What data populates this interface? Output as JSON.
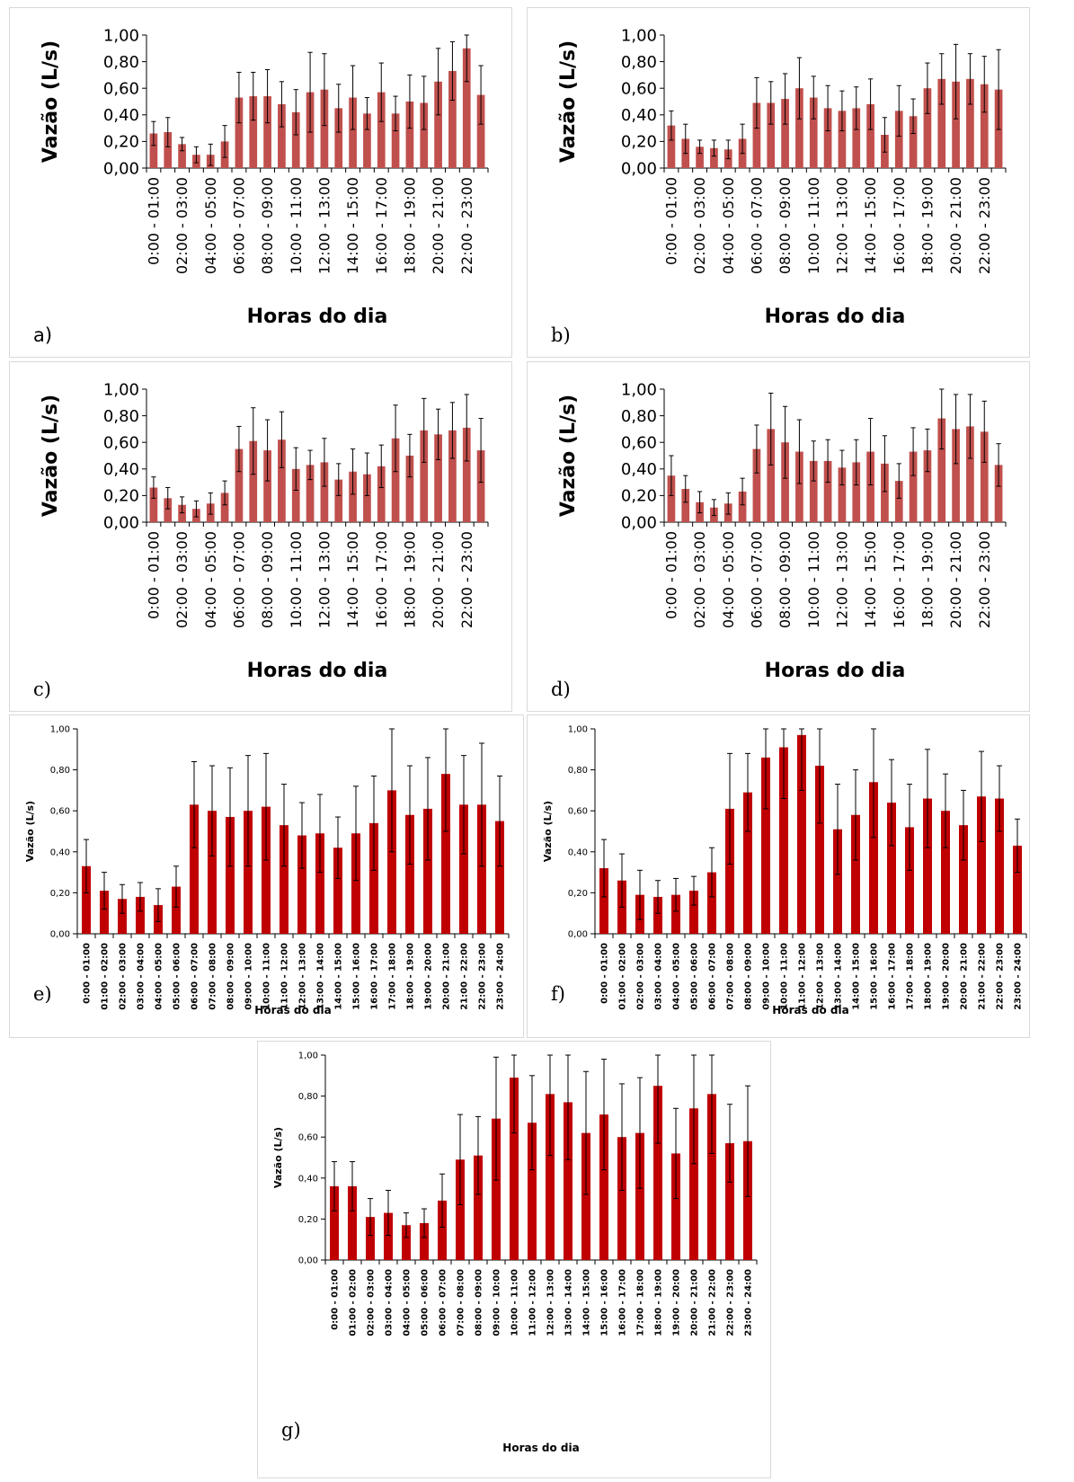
{
  "colors": {
    "panel_a_to_d_bar": "#c0504d",
    "panel_e_to_g_bar": "#c00000",
    "error_bar": "#000000"
  },
  "chart_data": [
    {
      "id": "a",
      "panel_label": "a)",
      "type": "bar",
      "xlabel": "Horas do dia",
      "ylabel": "Vazão (L/s)",
      "ylim": [
        0,
        1
      ],
      "yticks": [
        "0,00",
        "0,20",
        "0,40",
        "0,60",
        "0,80",
        "1,00"
      ],
      "categories": [
        "0:00 - 01:00",
        "",
        "02:00 - 03:00",
        "",
        "04:00 - 05:00",
        "",
        "06:00 - 07:00",
        "",
        "08:00 - 09:00",
        "",
        "10:00 - 11:00",
        "",
        "12:00 - 13:00",
        "",
        "14:00 - 15:00",
        "",
        "16:00 - 17:00",
        "",
        "18:00 - 19:00",
        "",
        "20:00 - 21:00",
        "",
        "22:00 - 23:00",
        ""
      ],
      "values": [
        0.26,
        0.27,
        0.18,
        0.1,
        0.1,
        0.2,
        0.53,
        0.54,
        0.54,
        0.48,
        0.42,
        0.57,
        0.59,
        0.45,
        0.53,
        0.41,
        0.57,
        0.41,
        0.5,
        0.49,
        0.65,
        0.73,
        0.9,
        0.55
      ],
      "errors": [
        0.09,
        0.11,
        0.05,
        0.06,
        0.08,
        0.12,
        0.19,
        0.18,
        0.2,
        0.17,
        0.17,
        0.3,
        0.27,
        0.18,
        0.24,
        0.12,
        0.22,
        0.13,
        0.2,
        0.2,
        0.25,
        0.22,
        0.25,
        0.22
      ]
    },
    {
      "id": "b",
      "panel_label": "b)",
      "type": "bar",
      "xlabel": "Horas do dia",
      "ylabel": "Vazão (L/s)",
      "ylim": [
        0,
        1
      ],
      "yticks": [
        "0,00",
        "0,20",
        "0,40",
        "0,60",
        "0,80",
        "1,00"
      ],
      "categories": [
        "0:00 - 01:00",
        "",
        "02:00 - 03:00",
        "",
        "04:00 - 05:00",
        "",
        "06:00 - 07:00",
        "",
        "08:00 - 09:00",
        "",
        "10:00 - 11:00",
        "",
        "12:00 - 13:00",
        "",
        "14:00 - 15:00",
        "",
        "16:00 - 17:00",
        "",
        "18:00 - 19:00",
        "",
        "20:00 - 21:00",
        "",
        "22:00 - 23:00",
        ""
      ],
      "values": [
        0.32,
        0.22,
        0.16,
        0.15,
        0.14,
        0.22,
        0.49,
        0.49,
        0.52,
        0.6,
        0.53,
        0.45,
        0.43,
        0.45,
        0.48,
        0.25,
        0.43,
        0.39,
        0.6,
        0.67,
        0.65,
        0.67,
        0.63,
        0.59
      ],
      "errors": [
        0.11,
        0.11,
        0.05,
        0.06,
        0.07,
        0.11,
        0.19,
        0.16,
        0.19,
        0.23,
        0.16,
        0.17,
        0.15,
        0.16,
        0.19,
        0.13,
        0.19,
        0.13,
        0.19,
        0.19,
        0.28,
        0.19,
        0.21,
        0.3
      ]
    },
    {
      "id": "c",
      "panel_label": "c)",
      "type": "bar",
      "xlabel": "Horas do dia",
      "ylabel": "Vazão (L/s)",
      "ylim": [
        0,
        1
      ],
      "yticks": [
        "0,00",
        "0,20",
        "0,40",
        "0,60",
        "0,80",
        "1,00"
      ],
      "categories": [
        "0:00 - 01:00",
        "",
        "02:00 - 03:00",
        "",
        "04:00 - 05:00",
        "",
        "06:00 - 07:00",
        "",
        "08:00 - 09:00",
        "",
        "10:00 - 11:00",
        "",
        "12:00 - 13:00",
        "",
        "14:00 - 15:00",
        "",
        "16:00 - 17:00",
        "",
        "18:00 - 19:00",
        "",
        "20:00 - 21:00",
        "",
        "22:00 - 23:00",
        ""
      ],
      "values": [
        0.26,
        0.18,
        0.13,
        0.1,
        0.14,
        0.22,
        0.55,
        0.61,
        0.54,
        0.62,
        0.4,
        0.43,
        0.45,
        0.32,
        0.38,
        0.36,
        0.42,
        0.63,
        0.5,
        0.69,
        0.66,
        0.69,
        0.71,
        0.54
      ],
      "errors": [
        0.08,
        0.08,
        0.06,
        0.06,
        0.08,
        0.09,
        0.17,
        0.25,
        0.23,
        0.21,
        0.16,
        0.11,
        0.18,
        0.12,
        0.17,
        0.16,
        0.16,
        0.25,
        0.16,
        0.24,
        0.19,
        0.21,
        0.25,
        0.24
      ]
    },
    {
      "id": "d",
      "panel_label": "d)",
      "type": "bar",
      "xlabel": "Horas do dia",
      "ylabel": "Vazão (L/s)",
      "ylim": [
        0,
        1
      ],
      "yticks": [
        "0,00",
        "0,20",
        "0,40",
        "0,60",
        "0,80",
        "1,00"
      ],
      "categories": [
        "0:00 - 01:00",
        "",
        "02:00 - 03:00",
        "",
        "04:00 - 05:00",
        "",
        "06:00 - 07:00",
        "",
        "08:00 - 09:00",
        "",
        "10:00 - 11:00",
        "",
        "12:00 - 13:00",
        "",
        "14:00 - 15:00",
        "",
        "16:00 - 17:00",
        "",
        "18:00 - 19:00",
        "",
        "20:00 - 21:00",
        "",
        "22:00 - 23:00",
        ""
      ],
      "values": [
        0.35,
        0.25,
        0.15,
        0.11,
        0.14,
        0.23,
        0.55,
        0.7,
        0.6,
        0.53,
        0.46,
        0.46,
        0.41,
        0.45,
        0.53,
        0.44,
        0.31,
        0.53,
        0.54,
        0.78,
        0.7,
        0.72,
        0.68,
        0.43
      ],
      "errors": [
        0.15,
        0.1,
        0.08,
        0.06,
        0.08,
        0.1,
        0.18,
        0.27,
        0.27,
        0.24,
        0.15,
        0.16,
        0.13,
        0.17,
        0.25,
        0.21,
        0.13,
        0.18,
        0.16,
        0.23,
        0.26,
        0.24,
        0.23,
        0.16
      ]
    },
    {
      "id": "e",
      "panel_label": "e)",
      "type": "bar",
      "xlabel": "Horas do dia",
      "ylabel": "Vazão (L/s)",
      "ylim": [
        0,
        1
      ],
      "yticks": [
        "0,00",
        "0,20",
        "0,40",
        "0,60",
        "0,80",
        "1,00"
      ],
      "categories": [
        "0:00 - 01:00",
        "01:00 - 02:00",
        "02:00 - 03:00",
        "03:00 - 04:00",
        "04:00 - 05:00",
        "05:00 - 06:00",
        "06:00 - 07:00",
        "07:00 - 08:00",
        "08:00 - 09:00",
        "09:00 - 10:00",
        "10:00 - 11:00",
        "11:00 - 12:00",
        "12:00 - 13:00",
        "13:00 - 14:00",
        "14:00 - 15:00",
        "15:00 - 16:00",
        "16:00 - 17:00",
        "17:00 - 18:00",
        "18:00 - 19:00",
        "19:00 - 20:00",
        "20:00 - 21:00",
        "21:00 - 22:00",
        "22:00 - 23:00",
        "23:00 - 24:00"
      ],
      "values": [
        0.33,
        0.21,
        0.17,
        0.18,
        0.14,
        0.23,
        0.63,
        0.6,
        0.57,
        0.6,
        0.62,
        0.53,
        0.48,
        0.49,
        0.42,
        0.49,
        0.54,
        0.7,
        0.58,
        0.61,
        0.78,
        0.63,
        0.63,
        0.55
      ],
      "errors": [
        0.13,
        0.09,
        0.07,
        0.07,
        0.08,
        0.1,
        0.21,
        0.22,
        0.24,
        0.27,
        0.26,
        0.2,
        0.16,
        0.19,
        0.15,
        0.23,
        0.23,
        0.3,
        0.24,
        0.25,
        0.28,
        0.24,
        0.3,
        0.22
      ]
    },
    {
      "id": "f",
      "panel_label": "f)",
      "type": "bar",
      "xlabel": "Horas do dia",
      "ylabel": "Vazão (L/s)",
      "ylim": [
        0,
        1
      ],
      "yticks": [
        "0,00",
        "0,20",
        "0,40",
        "0,60",
        "0,80",
        "1,00"
      ],
      "categories": [
        "0:00 - 01:00",
        "01:00 - 02:00",
        "02:00 - 03:00",
        "03:00 - 04:00",
        "04:00 - 05:00",
        "05:00 - 06:00",
        "06:00 - 07:00",
        "07:00 - 08:00",
        "08:00 - 09:00",
        "09:00 - 10:00",
        "10:00 - 11:00",
        "11:00 - 12:00",
        "12:00 - 13:00",
        "13:00 - 14:00",
        "14:00 - 15:00",
        "15:00 - 16:00",
        "16:00 - 17:00",
        "17:00 - 18:00",
        "18:00 - 19:00",
        "19:00 - 20:00",
        "20:00 - 21:00",
        "21:00 - 22:00",
        "22:00 - 23:00",
        "23:00 - 24:00"
      ],
      "values": [
        0.32,
        0.26,
        0.19,
        0.18,
        0.19,
        0.21,
        0.3,
        0.61,
        0.69,
        0.86,
        0.91,
        0.97,
        0.82,
        0.51,
        0.58,
        0.74,
        0.64,
        0.52,
        0.66,
        0.6,
        0.53,
        0.67,
        0.66,
        0.43
      ],
      "errors": [
        0.14,
        0.13,
        0.12,
        0.08,
        0.08,
        0.07,
        0.12,
        0.27,
        0.19,
        0.25,
        0.25,
        0.27,
        0.28,
        0.22,
        0.22,
        0.27,
        0.21,
        0.21,
        0.24,
        0.18,
        0.17,
        0.22,
        0.16,
        0.13
      ]
    },
    {
      "id": "g",
      "panel_label": "g)",
      "type": "bar",
      "xlabel": "Horas do dia",
      "ylabel": "Vazão (L/s)",
      "ylim": [
        0,
        1
      ],
      "yticks": [
        "0,00",
        "0,20",
        "0,40",
        "0,60",
        "0,80",
        "1,00"
      ],
      "categories": [
        "0:00 - 01:00",
        "01:00 - 02:00",
        "02:00 - 03:00",
        "03:00 - 04:00",
        "04:00 - 05:00",
        "05:00 - 06:00",
        "06:00 - 07:00",
        "07:00 - 08:00",
        "08:00 - 09:00",
        "09:00 - 10:00",
        "10:00 - 11:00",
        "11:00 - 12:00",
        "12:00 - 13:00",
        "13:00 - 14:00",
        "14:00 - 15:00",
        "15:00 - 16:00",
        "16:00 - 17:00",
        "17:00 - 18:00",
        "18:00 - 19:00",
        "19:00 - 20:00",
        "20:00 - 21:00",
        "21:00 - 22:00",
        "22:00 - 23:00",
        "23:00 - 24:00"
      ],
      "values": [
        0.36,
        0.36,
        0.21,
        0.23,
        0.17,
        0.18,
        0.29,
        0.49,
        0.51,
        0.69,
        0.89,
        0.67,
        0.81,
        0.77,
        0.62,
        0.71,
        0.6,
        0.62,
        0.85,
        0.52,
        0.74,
        0.81,
        0.57,
        0.58
      ],
      "errors": [
        0.12,
        0.12,
        0.09,
        0.11,
        0.06,
        0.07,
        0.13,
        0.22,
        0.19,
        0.3,
        0.27,
        0.23,
        0.3,
        0.28,
        0.3,
        0.27,
        0.26,
        0.27,
        0.28,
        0.22,
        0.27,
        0.29,
        0.19,
        0.27
      ]
    }
  ]
}
